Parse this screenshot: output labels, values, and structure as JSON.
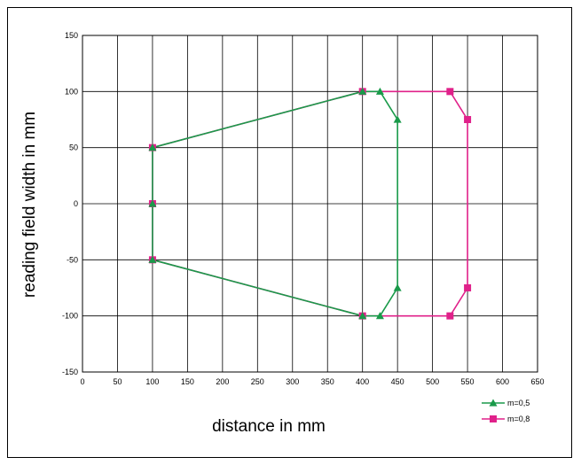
{
  "chart_data": {
    "type": "line",
    "title": "",
    "xlabel": "distance in mm",
    "ylabel": "reading field width in mm",
    "xlim": [
      0,
      650
    ],
    "ylim": [
      -150,
      150
    ],
    "x_ticks": [
      0,
      50,
      100,
      150,
      200,
      250,
      300,
      350,
      400,
      450,
      500,
      550,
      600,
      650
    ],
    "y_ticks": [
      -150,
      -100,
      -50,
      0,
      50,
      100,
      150
    ],
    "grid": true,
    "legend_position": "bottom-right",
    "series": [
      {
        "name": "m=0,5",
        "color": "#1a9a4a",
        "marker": "triangle",
        "points": [
          [
            100,
            50
          ],
          [
            400,
            100
          ],
          [
            425,
            100
          ],
          [
            450,
            75
          ],
          [
            450,
            -75
          ],
          [
            425,
            -100
          ],
          [
            400,
            -100
          ],
          [
            100,
            -50
          ],
          [
            100,
            0
          ],
          [
            100,
            50
          ]
        ]
      },
      {
        "name": "m=0,8",
        "color": "#e0218a",
        "marker": "square",
        "points": [
          [
            100,
            50
          ],
          [
            400,
            100
          ],
          [
            525,
            100
          ],
          [
            550,
            75
          ],
          [
            550,
            -75
          ],
          [
            525,
            -100
          ],
          [
            400,
            -100
          ],
          [
            100,
            -50
          ],
          [
            100,
            0
          ],
          [
            100,
            50
          ]
        ]
      }
    ]
  }
}
